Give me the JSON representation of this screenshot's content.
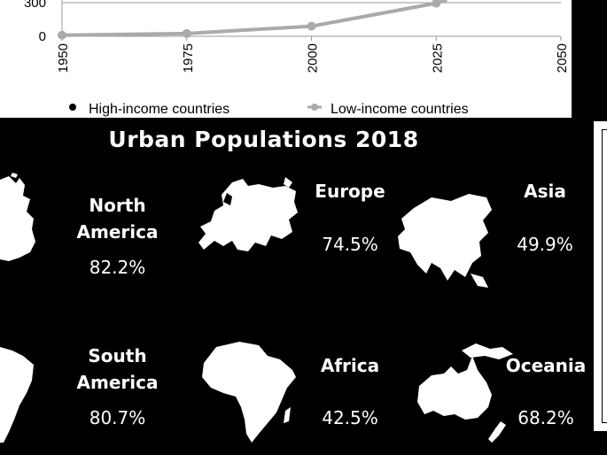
{
  "chart_data": {
    "type": "line",
    "x": [
      1950,
      1975,
      2000,
      2025,
      2050
    ],
    "x_tick_labels": [
      "1950",
      "1975",
      "2000",
      "2025",
      "2050"
    ],
    "y_tick_labels": [
      "0",
      "300"
    ],
    "series": [
      {
        "name": "High-income countries",
        "color": "#000000",
        "values": [
          null,
          null,
          null,
          null,
          null
        ]
      },
      {
        "name": "Low-income countries",
        "color": "#aaaaaa",
        "values": [
          10,
          25,
          90,
          295,
          null
        ]
      }
    ],
    "xlim": [
      1950,
      2050
    ],
    "ylim": [
      0,
      300
    ],
    "legend_position": "bottom",
    "grid": true
  },
  "infographic": {
    "title": "Urban Populations 2018",
    "regions": [
      {
        "name": "North\nAmerica",
        "percent": "82.2%"
      },
      {
        "name": "Europe",
        "percent": "74.5%"
      },
      {
        "name": "Asia",
        "percent": "49.9%"
      },
      {
        "name": "South\nAmerica",
        "percent": "80.7%"
      },
      {
        "name": "Africa",
        "percent": "42.5%"
      },
      {
        "name": "Oceania",
        "percent": "68.2%"
      }
    ]
  }
}
